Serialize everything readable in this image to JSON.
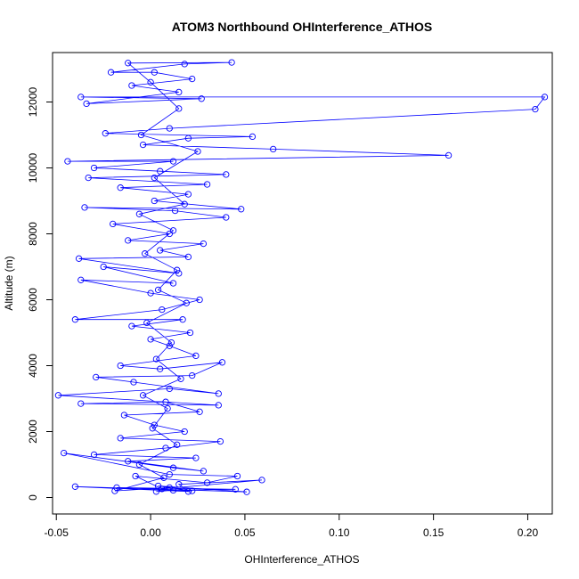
{
  "chart_data": {
    "type": "line",
    "title": "ATOM3 Northbound OHInterference_ATHOS",
    "xlabel": "OHInterference_ATHOS",
    "ylabel": "Altitude (m)",
    "xlim": [
      -0.052,
      0.213
    ],
    "ylim": [
      -500,
      13500
    ],
    "x_ticks": [
      -0.05,
      0.0,
      0.05,
      0.1,
      0.15,
      0.2
    ],
    "x_tick_labels": [
      "-0.05",
      "0.00",
      "0.05",
      "0.10",
      "0.15",
      "0.20"
    ],
    "y_ticks": [
      0,
      2000,
      4000,
      6000,
      8000,
      10000,
      12000
    ],
    "y_tick_labels": [
      "0",
      "2000",
      "4000",
      "6000",
      "8000",
      "10000",
      "12000"
    ],
    "grid": false,
    "markers": "open-circle",
    "series": [
      {
        "color": "#0000ff",
        "points": [
          [
            0.003,
            180
          ],
          [
            0.012,
            220
          ],
          [
            0.045,
            250
          ],
          [
            -0.018,
            300
          ],
          [
            0.022,
            200
          ],
          [
            0.004,
            350
          ],
          [
            0.051,
            170
          ],
          [
            -0.04,
            330
          ],
          [
            0.02,
            180
          ],
          [
            0.015,
            400
          ],
          [
            0.059,
            530
          ],
          [
            0.006,
            260
          ],
          [
            -0.008,
            650
          ],
          [
            0.03,
            450
          ],
          [
            0.046,
            650
          ],
          [
            0.01,
            700
          ],
          [
            -0.046,
            1350
          ],
          [
            0.012,
            900
          ],
          [
            0.028,
            800
          ],
          [
            -0.012,
            1100
          ],
          [
            0.024,
            1200
          ],
          [
            -0.03,
            1300
          ],
          [
            0.008,
            1500
          ],
          [
            0.037,
            1700
          ],
          [
            -0.016,
            1800
          ],
          [
            0.018,
            2000
          ],
          [
            0.002,
            2200
          ],
          [
            -0.014,
            2500
          ],
          [
            0.026,
            2600
          ],
          [
            0.008,
            2900
          ],
          [
            -0.037,
            2850
          ],
          [
            0.036,
            2800
          ],
          [
            -0.049,
            3100
          ],
          [
            0.01,
            3300
          ],
          [
            0.036,
            3150
          ],
          [
            -0.009,
            3500
          ],
          [
            -0.029,
            3650
          ],
          [
            0.022,
            3700
          ],
          [
            0.038,
            4100
          ],
          [
            0.005,
            3900
          ],
          [
            -0.016,
            4000
          ],
          [
            0.024,
            4300
          ],
          [
            0.01,
            4600
          ],
          [
            0.0,
            4800
          ],
          [
            0.021,
            5000
          ],
          [
            -0.01,
            5200
          ],
          [
            0.017,
            5400
          ],
          [
            -0.04,
            5400
          ],
          [
            0.006,
            5700
          ],
          [
            0.026,
            6000
          ],
          [
            0.0,
            6200
          ],
          [
            -0.037,
            6600
          ],
          [
            0.012,
            6500
          ],
          [
            -0.025,
            7000
          ],
          [
            0.015,
            6800
          ],
          [
            -0.038,
            7250
          ],
          [
            0.02,
            7300
          ],
          [
            0.005,
            7500
          ],
          [
            0.028,
            7700
          ],
          [
            -0.012,
            7800
          ],
          [
            0.01,
            8000
          ],
          [
            -0.02,
            8300
          ],
          [
            0.04,
            8500
          ],
          [
            0.013,
            8700
          ],
          [
            -0.035,
            8800
          ],
          [
            0.048,
            8750
          ],
          [
            0.002,
            9000
          ],
          [
            0.02,
            9200
          ],
          [
            -0.016,
            9400
          ],
          [
            0.03,
            9500
          ],
          [
            -0.033,
            9700
          ],
          [
            0.04,
            9800
          ],
          [
            0.005,
            9900
          ],
          [
            -0.03,
            10000
          ],
          [
            0.012,
            10200
          ],
          [
            -0.044,
            10200
          ],
          [
            0.158,
            10380
          ],
          [
            0.065,
            10570
          ],
          [
            -0.004,
            10700
          ],
          [
            0.02,
            10900
          ],
          [
            0.054,
            10950
          ],
          [
            -0.024,
            11050
          ],
          [
            0.01,
            11200
          ],
          [
            0.204,
            11780
          ],
          [
            0.209,
            12150
          ],
          [
            -0.037,
            12150
          ],
          [
            0.027,
            12100
          ],
          [
            -0.034,
            11950
          ],
          [
            0.015,
            12300
          ],
          [
            -0.01,
            12500
          ],
          [
            0.022,
            12700
          ],
          [
            0.002,
            12900
          ],
          [
            -0.021,
            12900
          ],
          [
            0.018,
            13150
          ],
          [
            0.043,
            13200
          ],
          [
            -0.012,
            13180
          ],
          [
            0.0,
            12600
          ],
          [
            0.015,
            11800
          ],
          [
            -0.005,
            11000
          ],
          [
            0.025,
            10500
          ],
          [
            0.002,
            9700
          ],
          [
            0.018,
            8900
          ],
          [
            -0.006,
            8600
          ],
          [
            0.012,
            8100
          ],
          [
            -0.003,
            7400
          ],
          [
            0.014,
            6900
          ],
          [
            0.004,
            6300
          ],
          [
            0.019,
            5900
          ],
          [
            -0.002,
            5300
          ],
          [
            0.011,
            4700
          ],
          [
            0.003,
            4200
          ],
          [
            0.016,
            3600
          ],
          [
            -0.004,
            3100
          ],
          [
            0.009,
            2700
          ],
          [
            0.001,
            2100
          ],
          [
            0.014,
            1600
          ],
          [
            -0.006,
            1000
          ],
          [
            0.007,
            600
          ],
          [
            -0.019,
            200
          ],
          [
            0.01,
            300
          ]
        ]
      }
    ]
  }
}
